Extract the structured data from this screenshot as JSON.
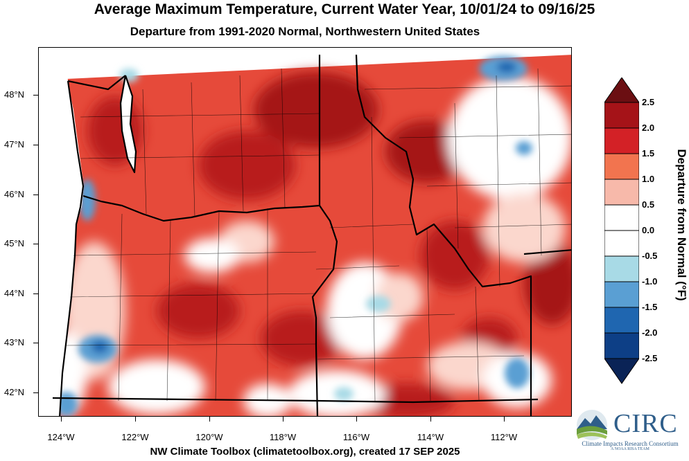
{
  "header": {
    "title": "Average Maximum Temperature, Current Water Year, 10/01/24 to 09/16/25",
    "subtitle": "Departure from 1991-2020 Normal, Northwestern United States"
  },
  "map": {
    "lat_labels": [
      "48°N",
      "47°N",
      "46°N",
      "45°N",
      "44°N",
      "43°N",
      "42°N"
    ],
    "lon_labels": [
      "124°W",
      "122°W",
      "120°W",
      "118°W",
      "116°W",
      "114°W",
      "112°W"
    ]
  },
  "legend": {
    "title": "Departure from Normal (°F)",
    "ticks": [
      "2.5",
      "2.0",
      "1.5",
      "1.0",
      "0.5",
      "0.0",
      "-0.5",
      "-1.0",
      "-1.5",
      "-2.0",
      "-2.5"
    ],
    "colors": [
      "#6b0f12",
      "#a51318",
      "#d32126",
      "#f2744f",
      "#f7b9aa",
      "#ffffff",
      "#ffffff",
      "#a8dae6",
      "#5a9fd3",
      "#1f66b0",
      "#0d3f86",
      "#0a2356"
    ]
  },
  "footer": {
    "credit": "NW Climate Toolbox (climatetoolbox.org), created 17 SEP 2025"
  },
  "logo": {
    "name": "CIRC",
    "tagline": "Climate Impacts Research Consortium",
    "small": "A NOAA RISA TEAM"
  }
}
